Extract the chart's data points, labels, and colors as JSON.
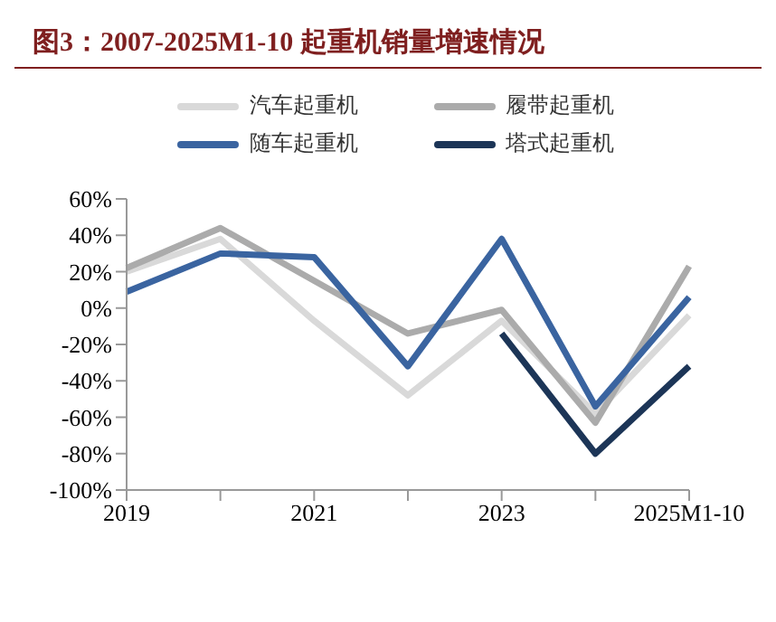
{
  "chart_data": {
    "type": "line",
    "title": "图3：2007-2025M1-10 起重机销量增速情况",
    "categories": [
      "2019",
      null,
      "2021",
      null,
      "2023",
      null,
      "2025M1-10"
    ],
    "series": [
      {
        "name": "汽车起重机",
        "color": "#d9d9d9",
        "values": [
          20,
          38,
          -7,
          -48,
          -7,
          -58,
          -4
        ]
      },
      {
        "name": "履带起重机",
        "color": "#ababab",
        "values": [
          22,
          44,
          15,
          -14,
          -1,
          -63,
          23
        ]
      },
      {
        "name": "随车起重机",
        "color": "#3a64a0",
        "values": [
          9,
          30,
          28,
          -32,
          38,
          -54,
          6
        ]
      },
      {
        "name": "塔式起重机",
        "color": "#1c3557",
        "values": [
          null,
          null,
          null,
          null,
          -14,
          -80,
          -32
        ]
      }
    ],
    "ylim": [
      -100,
      60
    ],
    "yticks": [
      {
        "value": -100,
        "label": "-100%"
      },
      {
        "value": -80,
        "label": "-80%"
      },
      {
        "value": -60,
        "label": "-60%"
      },
      {
        "value": -40,
        "label": "-40%"
      },
      {
        "value": -20,
        "label": "-20%"
      },
      {
        "value": 0,
        "label": "0%"
      },
      {
        "value": 20,
        "label": "20%"
      },
      {
        "value": 40,
        "label": "40%"
      },
      {
        "value": 60,
        "label": "60%"
      }
    ],
    "legend": "top",
    "marker": "none",
    "line_style": "solid",
    "grid": false
  }
}
